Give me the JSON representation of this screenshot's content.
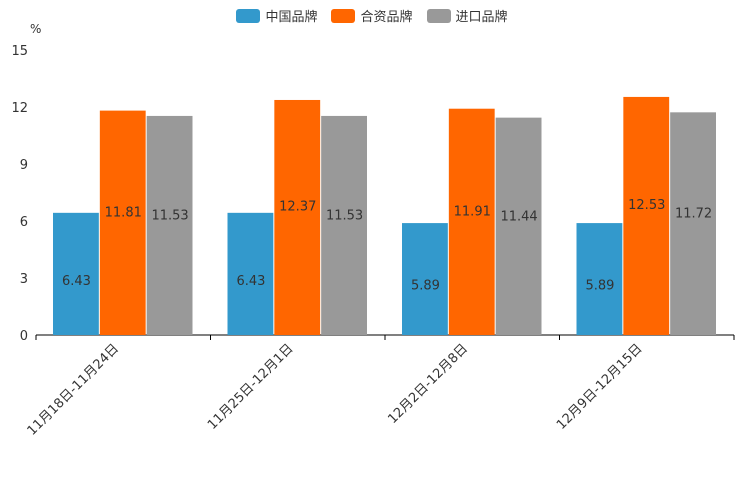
{
  "chart_data": {
    "type": "bar",
    "title": "",
    "xlabel": "",
    "ylabel": "%",
    "ylim": [
      0,
      15
    ],
    "yticks": [
      0,
      3,
      6,
      9,
      12,
      15
    ],
    "categories": [
      "11月18日-11月24日",
      "11月25日-12月1日",
      "12月2日-12月8日",
      "12月9日-12月15日"
    ],
    "series": [
      {
        "name": "中国品牌",
        "color": "#3399cc",
        "values": [
          6.43,
          6.43,
          5.89,
          5.89
        ]
      },
      {
        "name": "合资品牌",
        "color": "#ff6600",
        "values": [
          11.81,
          12.37,
          11.91,
          12.53
        ]
      },
      {
        "name": "进口品牌",
        "color": "#999999",
        "values": [
          11.53,
          11.53,
          11.44,
          11.72
        ]
      }
    ],
    "legend_position": "top-center",
    "grid": false
  }
}
